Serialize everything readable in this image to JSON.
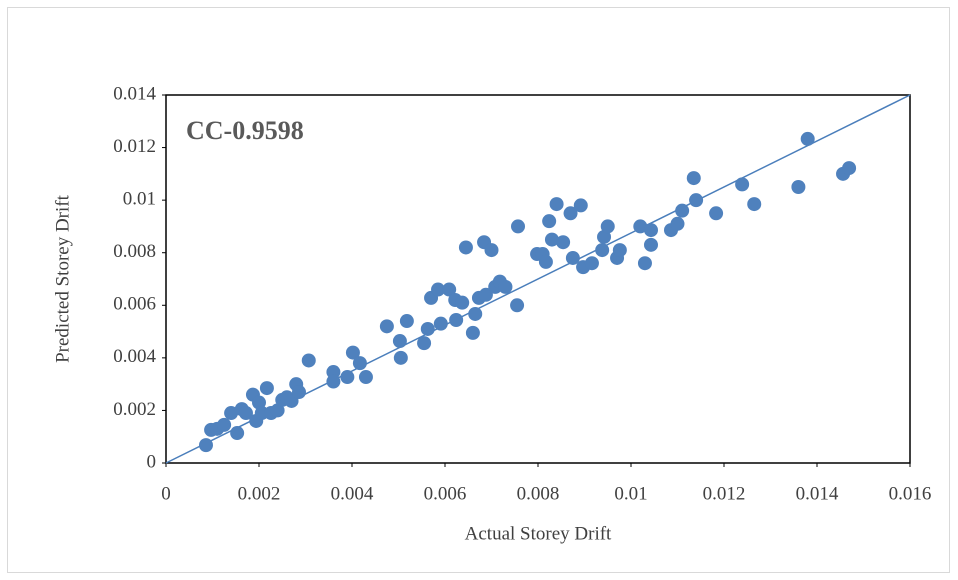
{
  "chart_data": {
    "type": "scatter",
    "annotation": "CC-0.9598",
    "x_label": "Actual Storey Drift",
    "y_label": "Predicted Storey Drift",
    "color": "#4f81bd",
    "line_color": "#4a7ebb",
    "reference_line": {
      "x": [
        0,
        0.016
      ],
      "y": [
        0,
        0.014
      ]
    },
    "xlim": [
      0,
      0.016
    ],
    "ylim": [
      0,
      0.014
    ],
    "xticks": [
      0,
      0.002,
      0.004,
      0.006,
      0.008,
      0.01,
      0.012,
      0.014,
      0.016
    ],
    "yticks": [
      0,
      0.002,
      0.004,
      0.006,
      0.008,
      0.01,
      0.012,
      0.014
    ],
    "x": [
      0.00086,
      0.00097,
      0.0011,
      0.00125,
      0.0014,
      0.00153,
      0.00163,
      0.00172,
      0.00187,
      0.00194,
      0.002,
      0.00206,
      0.00217,
      0.00226,
      0.0024,
      0.0025,
      0.0026,
      0.0027,
      0.0028,
      0.00286,
      0.00307,
      0.0036,
      0.0036,
      0.0039,
      0.00402,
      0.00417,
      0.0043,
      0.00475,
      0.00503,
      0.00505,
      0.00518,
      0.00555,
      0.00563,
      0.0057,
      0.00585,
      0.00591,
      0.00609,
      0.00622,
      0.00624,
      0.00637,
      0.00645,
      0.0066,
      0.00665,
      0.00673,
      0.00684,
      0.00688,
      0.007,
      0.00708,
      0.00718,
      0.0073,
      0.00755,
      0.00757,
      0.00798,
      0.0081,
      0.00817,
      0.00824,
      0.0083,
      0.0084,
      0.00854,
      0.0087,
      0.00875,
      0.00892,
      0.00897,
      0.00916,
      0.00938,
      0.00942,
      0.0095,
      0.0097,
      0.00976,
      0.0102,
      0.0103,
      0.01043,
      0.01043,
      0.01086,
      0.011,
      0.0111,
      0.01135,
      0.0114,
      0.01183,
      0.01239,
      0.01265,
      0.0136,
      0.0138,
      0.01456,
      0.01469
    ],
    "values": [
      0.00068,
      0.00126,
      0.0013,
      0.00145,
      0.0019,
      0.00114,
      0.00205,
      0.0019,
      0.0026,
      0.0016,
      0.0023,
      0.0019,
      0.00285,
      0.0019,
      0.002,
      0.0024,
      0.0025,
      0.00236,
      0.003,
      0.0027,
      0.0039,
      0.00346,
      0.0031,
      0.00327,
      0.0042,
      0.0038,
      0.00327,
      0.0052,
      0.00464,
      0.004,
      0.0054,
      0.00456,
      0.0051,
      0.00628,
      0.0066,
      0.0053,
      0.0066,
      0.0062,
      0.00544,
      0.0061,
      0.0082,
      0.00495,
      0.00567,
      0.00628,
      0.0084,
      0.0064,
      0.0081,
      0.0067,
      0.0069,
      0.0067,
      0.006,
      0.009,
      0.00795,
      0.00795,
      0.00765,
      0.0092,
      0.0085,
      0.00985,
      0.0084,
      0.0095,
      0.0078,
      0.0098,
      0.00745,
      0.0076,
      0.0081,
      0.0086,
      0.009,
      0.0078,
      0.0081,
      0.009,
      0.0076,
      0.00886,
      0.0083,
      0.00886,
      0.0091,
      0.0096,
      0.01084,
      0.01,
      0.0095,
      0.0106,
      0.00985,
      0.0105,
      0.01233,
      0.011,
      0.01122
    ]
  }
}
